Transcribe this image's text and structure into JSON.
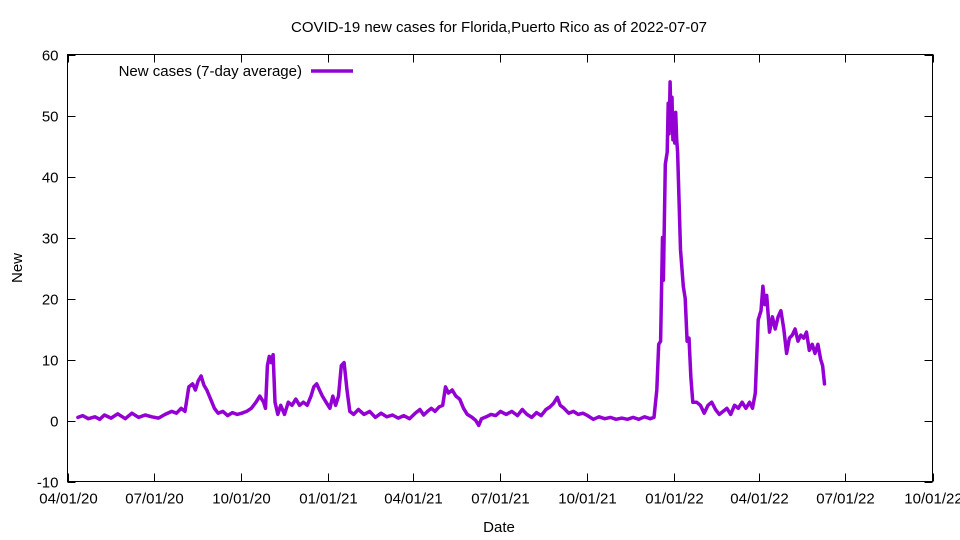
{
  "chart_data": {
    "type": "line",
    "title": "COVID-19 new cases for Florida,Puerto Rico as of 2022-07-07",
    "xlabel": "Date",
    "ylabel": "New",
    "x_is_date": true,
    "xlim": [
      "2020-04-01",
      "2022-10-01"
    ],
    "ylim": [
      -10,
      60
    ],
    "yticks": [
      -10,
      0,
      10,
      20,
      30,
      40,
      50,
      60
    ],
    "xticks": [
      {
        "date": "2020-04-01",
        "label": "04/01/20"
      },
      {
        "date": "2020-07-01",
        "label": "07/01/20"
      },
      {
        "date": "2020-10-01",
        "label": "10/01/20"
      },
      {
        "date": "2021-01-01",
        "label": "01/01/21"
      },
      {
        "date": "2021-04-01",
        "label": "04/01/21"
      },
      {
        "date": "2021-07-01",
        "label": "07/01/21"
      },
      {
        "date": "2021-10-01",
        "label": "10/01/21"
      },
      {
        "date": "2022-01-01",
        "label": "01/01/22"
      },
      {
        "date": "2022-04-01",
        "label": "04/01/22"
      },
      {
        "date": "2022-07-01",
        "label": "07/01/22"
      },
      {
        "date": "2022-10-01",
        "label": "10/01/22"
      }
    ],
    "legend_position": "top-left",
    "grid": false,
    "series": [
      {
        "name": "New cases (7-day average)",
        "color": "#9400d3",
        "points": [
          [
            "2020-04-12",
            0.5
          ],
          [
            "2020-04-17",
            0.8
          ],
          [
            "2020-04-23",
            0.3
          ],
          [
            "2020-04-30",
            0.6
          ],
          [
            "2020-05-05",
            0.2
          ],
          [
            "2020-05-10",
            0.9
          ],
          [
            "2020-05-17",
            0.4
          ],
          [
            "2020-05-24",
            1.1
          ],
          [
            "2020-06-01",
            0.3
          ],
          [
            "2020-06-08",
            1.2
          ],
          [
            "2020-06-15",
            0.5
          ],
          [
            "2020-06-22",
            0.9
          ],
          [
            "2020-06-29",
            0.6
          ],
          [
            "2020-07-06",
            0.4
          ],
          [
            "2020-07-13",
            1.0
          ],
          [
            "2020-07-20",
            1.5
          ],
          [
            "2020-07-25",
            1.2
          ],
          [
            "2020-07-30",
            2.0
          ],
          [
            "2020-08-03",
            1.5
          ],
          [
            "2020-08-07",
            5.5
          ],
          [
            "2020-08-11",
            6.0
          ],
          [
            "2020-08-14",
            5.0
          ],
          [
            "2020-08-17",
            6.5
          ],
          [
            "2020-08-20",
            7.3
          ],
          [
            "2020-08-23",
            5.8
          ],
          [
            "2020-08-26",
            5.0
          ],
          [
            "2020-08-30",
            3.5
          ],
          [
            "2020-09-03",
            2.0
          ],
          [
            "2020-09-07",
            1.2
          ],
          [
            "2020-09-12",
            1.5
          ],
          [
            "2020-09-17",
            0.8
          ],
          [
            "2020-09-22",
            1.3
          ],
          [
            "2020-09-27",
            1.0
          ],
          [
            "2020-10-02",
            1.2
          ],
          [
            "2020-10-07",
            1.5
          ],
          [
            "2020-10-12",
            2.0
          ],
          [
            "2020-10-17",
            3.0
          ],
          [
            "2020-10-21",
            4.0
          ],
          [
            "2020-10-25",
            3.0
          ],
          [
            "2020-10-27",
            2.0
          ],
          [
            "2020-10-29",
            9.0
          ],
          [
            "2020-10-31",
            10.5
          ],
          [
            "2020-11-02",
            9.5
          ],
          [
            "2020-11-04",
            10.8
          ],
          [
            "2020-11-06",
            3.0
          ],
          [
            "2020-11-09",
            1.0
          ],
          [
            "2020-11-12",
            2.5
          ],
          [
            "2020-11-16",
            1.0
          ],
          [
            "2020-11-20",
            3.0
          ],
          [
            "2020-11-24",
            2.5
          ],
          [
            "2020-11-28",
            3.5
          ],
          [
            "2020-12-02",
            2.5
          ],
          [
            "2020-12-06",
            3.0
          ],
          [
            "2020-12-10",
            2.5
          ],
          [
            "2020-12-14",
            4.0
          ],
          [
            "2020-12-17",
            5.5
          ],
          [
            "2020-12-20",
            6.0
          ],
          [
            "2020-12-23",
            5.0
          ],
          [
            "2020-12-26",
            4.0
          ],
          [
            "2020-12-30",
            3.0
          ],
          [
            "2021-01-03",
            2.0
          ],
          [
            "2021-01-06",
            4.0
          ],
          [
            "2021-01-09",
            2.5
          ],
          [
            "2021-01-12",
            4.0
          ],
          [
            "2021-01-15",
            9.0
          ],
          [
            "2021-01-18",
            9.5
          ],
          [
            "2021-01-21",
            5.0
          ],
          [
            "2021-01-24",
            1.5
          ],
          [
            "2021-01-28",
            1.0
          ],
          [
            "2021-02-02",
            1.8
          ],
          [
            "2021-02-08",
            1.0
          ],
          [
            "2021-02-14",
            1.5
          ],
          [
            "2021-02-20",
            0.5
          ],
          [
            "2021-02-26",
            1.2
          ],
          [
            "2021-03-04",
            0.6
          ],
          [
            "2021-03-10",
            0.9
          ],
          [
            "2021-03-16",
            0.4
          ],
          [
            "2021-03-22",
            0.8
          ],
          [
            "2021-03-28",
            0.3
          ],
          [
            "2021-04-03",
            1.2
          ],
          [
            "2021-04-08",
            1.8
          ],
          [
            "2021-04-12",
            0.9
          ],
          [
            "2021-04-16",
            1.5
          ],
          [
            "2021-04-20",
            2.0
          ],
          [
            "2021-04-24",
            1.5
          ],
          [
            "2021-04-28",
            2.2
          ],
          [
            "2021-05-02",
            2.5
          ],
          [
            "2021-05-05",
            5.5
          ],
          [
            "2021-05-08",
            4.5
          ],
          [
            "2021-05-12",
            5.0
          ],
          [
            "2021-05-16",
            4.0
          ],
          [
            "2021-05-20",
            3.5
          ],
          [
            "2021-05-24",
            2.0
          ],
          [
            "2021-05-28",
            1.0
          ],
          [
            "2021-06-02",
            0.5
          ],
          [
            "2021-06-06",
            0.0
          ],
          [
            "2021-06-09",
            -0.8
          ],
          [
            "2021-06-12",
            0.3
          ],
          [
            "2021-06-17",
            0.6
          ],
          [
            "2021-06-22",
            1.0
          ],
          [
            "2021-06-27",
            0.8
          ],
          [
            "2021-07-02",
            1.5
          ],
          [
            "2021-07-08",
            1.0
          ],
          [
            "2021-07-14",
            1.5
          ],
          [
            "2021-07-20",
            0.8
          ],
          [
            "2021-07-25",
            1.8
          ],
          [
            "2021-07-30",
            1.0
          ],
          [
            "2021-08-04",
            0.5
          ],
          [
            "2021-08-09",
            1.3
          ],
          [
            "2021-08-14",
            0.8
          ],
          [
            "2021-08-19",
            1.8
          ],
          [
            "2021-08-23",
            2.2
          ],
          [
            "2021-08-27",
            2.8
          ],
          [
            "2021-08-31",
            3.8
          ],
          [
            "2021-09-03",
            2.5
          ],
          [
            "2021-09-07",
            2.0
          ],
          [
            "2021-09-12",
            1.2
          ],
          [
            "2021-09-17",
            1.5
          ],
          [
            "2021-09-22",
            1.0
          ],
          [
            "2021-09-27",
            1.2
          ],
          [
            "2021-10-02",
            0.8
          ],
          [
            "2021-10-08",
            0.2
          ],
          [
            "2021-10-14",
            0.6
          ],
          [
            "2021-10-20",
            0.3
          ],
          [
            "2021-10-26",
            0.5
          ],
          [
            "2021-11-01",
            0.2
          ],
          [
            "2021-11-07",
            0.4
          ],
          [
            "2021-11-13",
            0.2
          ],
          [
            "2021-11-19",
            0.5
          ],
          [
            "2021-11-25",
            0.2
          ],
          [
            "2021-12-01",
            0.6
          ],
          [
            "2021-12-07",
            0.3
          ],
          [
            "2021-12-11",
            0.5
          ],
          [
            "2021-12-14",
            5.0
          ],
          [
            "2021-12-16",
            12.5
          ],
          [
            "2021-12-18",
            13.0
          ],
          [
            "2021-12-20",
            30.0
          ],
          [
            "2021-12-21",
            23.0
          ],
          [
            "2021-12-23",
            42.0
          ],
          [
            "2021-12-25",
            44.0
          ],
          [
            "2021-12-26",
            52.0
          ],
          [
            "2021-12-27",
            47.0
          ],
          [
            "2021-12-28",
            55.5
          ],
          [
            "2021-12-29",
            49.0
          ],
          [
            "2021-12-30",
            53.0
          ],
          [
            "2021-12-31",
            46.0
          ],
          [
            "2022-01-01",
            49.0
          ],
          [
            "2022-01-02",
            45.5
          ],
          [
            "2022-01-03",
            50.5
          ],
          [
            "2022-01-04",
            46.0
          ],
          [
            "2022-01-05",
            44.0
          ],
          [
            "2022-01-08",
            28.0
          ],
          [
            "2022-01-11",
            22.0
          ],
          [
            "2022-01-13",
            20.0
          ],
          [
            "2022-01-15",
            13.0
          ],
          [
            "2022-01-17",
            13.5
          ],
          [
            "2022-01-19",
            7.0
          ],
          [
            "2022-01-21",
            3.0
          ],
          [
            "2022-01-25",
            3.0
          ],
          [
            "2022-01-29",
            2.5
          ],
          [
            "2022-02-02",
            1.2
          ],
          [
            "2022-02-06",
            2.5
          ],
          [
            "2022-02-10",
            3.0
          ],
          [
            "2022-02-14",
            1.8
          ],
          [
            "2022-02-18",
            1.0
          ],
          [
            "2022-02-22",
            1.5
          ],
          [
            "2022-02-26",
            2.0
          ],
          [
            "2022-03-02",
            1.0
          ],
          [
            "2022-03-06",
            2.5
          ],
          [
            "2022-03-10",
            2.0
          ],
          [
            "2022-03-14",
            3.0
          ],
          [
            "2022-03-18",
            2.0
          ],
          [
            "2022-03-22",
            3.0
          ],
          [
            "2022-03-25",
            2.0
          ],
          [
            "2022-03-28",
            4.5
          ],
          [
            "2022-03-31",
            16.5
          ],
          [
            "2022-04-03",
            18.0
          ],
          [
            "2022-04-05",
            22.0
          ],
          [
            "2022-04-07",
            19.0
          ],
          [
            "2022-04-09",
            20.5
          ],
          [
            "2022-04-12",
            14.5
          ],
          [
            "2022-04-15",
            17.0
          ],
          [
            "2022-04-18",
            15.0
          ],
          [
            "2022-04-21",
            17.0
          ],
          [
            "2022-04-24",
            18.0
          ],
          [
            "2022-04-27",
            15.0
          ],
          [
            "2022-04-30",
            11.0
          ],
          [
            "2022-05-03",
            13.5
          ],
          [
            "2022-05-06",
            14.0
          ],
          [
            "2022-05-09",
            15.0
          ],
          [
            "2022-05-12",
            13.0
          ],
          [
            "2022-05-15",
            14.0
          ],
          [
            "2022-05-18",
            13.5
          ],
          [
            "2022-05-21",
            14.5
          ],
          [
            "2022-05-24",
            11.5
          ],
          [
            "2022-05-27",
            12.5
          ],
          [
            "2022-05-30",
            11.0
          ],
          [
            "2022-06-02",
            12.5
          ],
          [
            "2022-06-05",
            10.0
          ],
          [
            "2022-06-07",
            9.0
          ],
          [
            "2022-06-09",
            6.0
          ]
        ]
      }
    ]
  }
}
